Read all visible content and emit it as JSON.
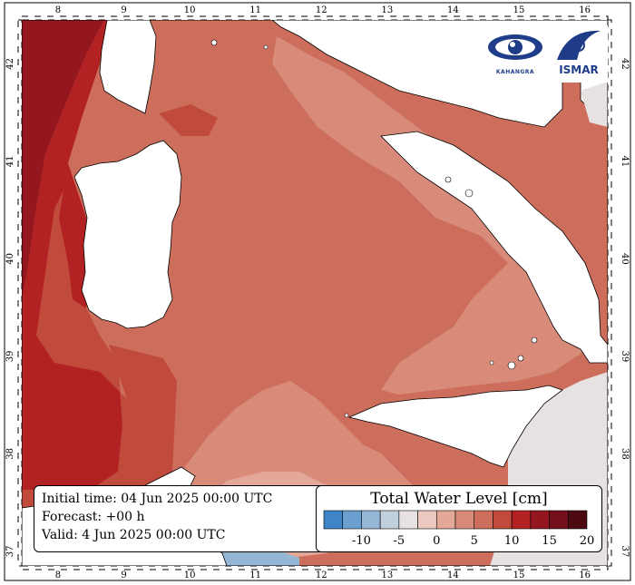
{
  "info": {
    "initial_time": "Initial time: 04 Jun 2025 00:00 UTC",
    "forecast": "Forecast: +00 h",
    "valid": "Valid:  4 Jun 2025 00:00 UTC"
  },
  "legend": {
    "title": "Total Water Level [cm]",
    "colors": [
      "#3d85c6",
      "#6a9fcf",
      "#95b7d6",
      "#bfcfdc",
      "#e7e2e1",
      "#ecc8c0",
      "#e4a898",
      "#d98b79",
      "#cd6e5c",
      "#c04a3b",
      "#b22222",
      "#94161e",
      "#74101a",
      "#4d0a12"
    ],
    "tick_labels": [
      "-10",
      "-5",
      "0",
      "5",
      "10",
      "15",
      "20"
    ],
    "tick_values": [
      -10,
      -5,
      0,
      5,
      10,
      15,
      20
    ],
    "min": -15,
    "max": 20
  },
  "axes": {
    "lon_ticks": [
      "8",
      "9",
      "10",
      "11",
      "12",
      "13",
      "14",
      "15",
      "16"
    ],
    "lat_ticks": [
      "37",
      "38",
      "39",
      "40",
      "41",
      "42"
    ],
    "lon_values": [
      8,
      9,
      10,
      11,
      12,
      13,
      14,
      15,
      16
    ],
    "lat_values": [
      37,
      38,
      39,
      40,
      41,
      42
    ],
    "lon_range": [
      7.45,
      16.35
    ],
    "lat_range": [
      36.85,
      42.45
    ]
  },
  "logos": {
    "left_caption": "KAHANGRA",
    "right_caption": "ISMAR"
  }
}
